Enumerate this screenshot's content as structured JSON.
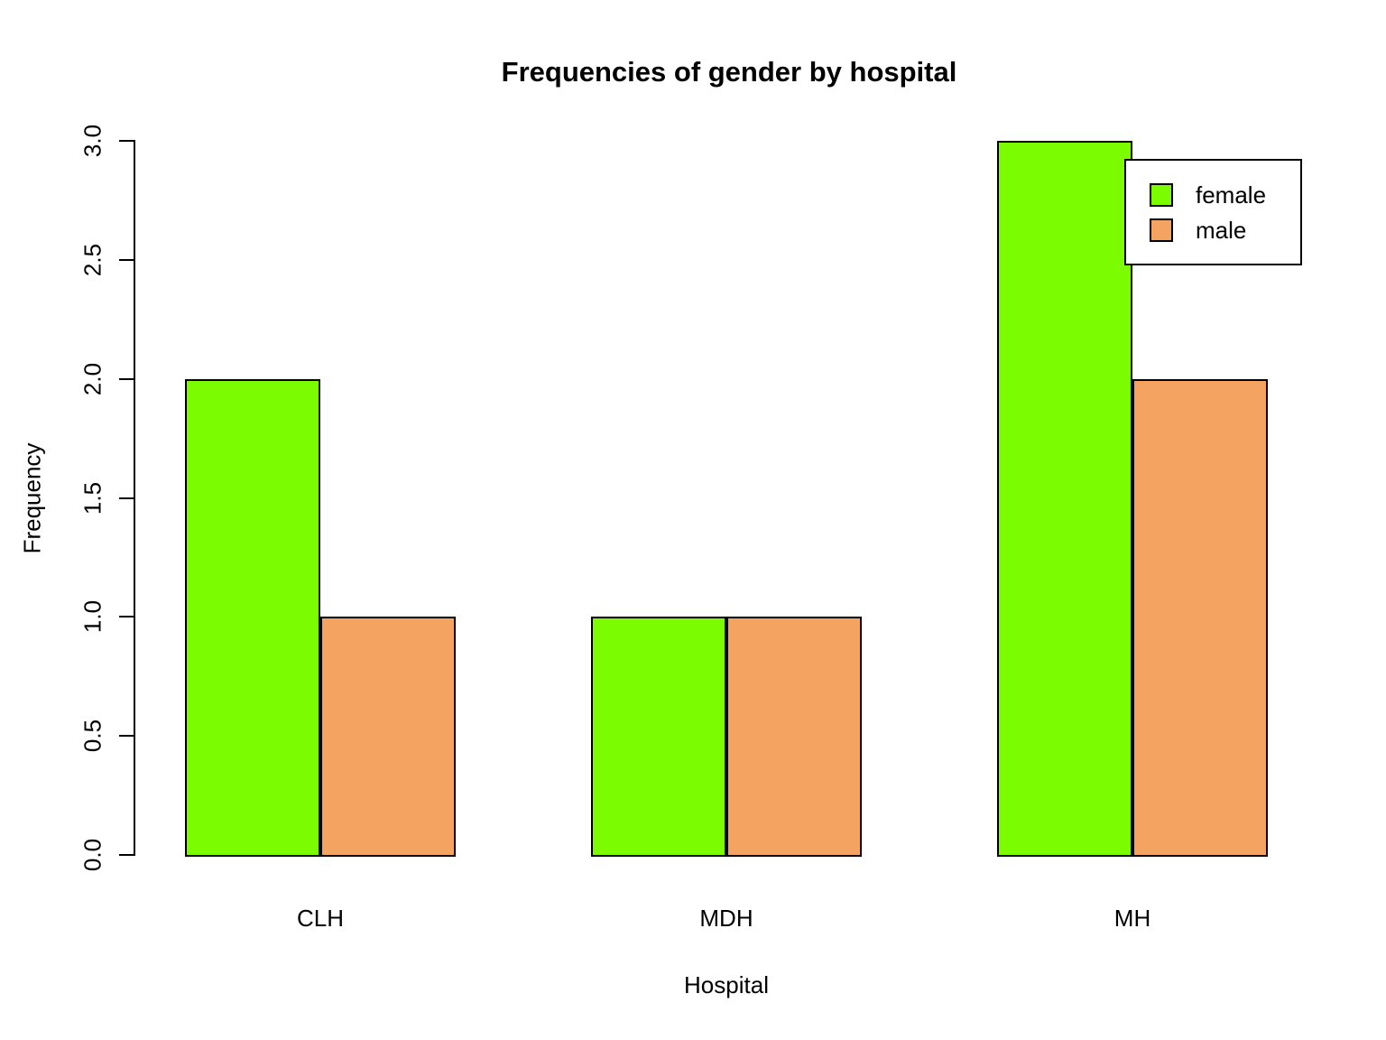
{
  "chart_data": {
    "type": "bar",
    "title": "Frequencies of gender by hospital",
    "xlabel": "Hospital",
    "ylabel": "Frequency",
    "categories": [
      "CLH",
      "MDH",
      "MH"
    ],
    "series": [
      {
        "name": "female",
        "color": "#7CFC00",
        "values": [
          2,
          1,
          3
        ]
      },
      {
        "name": "male",
        "color": "#F4A460",
        "values": [
          1,
          1,
          2
        ]
      }
    ],
    "ylim": [
      0,
      3
    ],
    "yticks": [
      0,
      0.5,
      1,
      1.5,
      2,
      2.5,
      3
    ],
    "ytick_labels": [
      "0.0",
      "0.5",
      "1.0",
      "1.5",
      "2.0",
      "2.5",
      "3.0"
    ],
    "grid": false,
    "legend": {
      "entries": [
        "female",
        "male"
      ],
      "position": "top-right"
    },
    "bar_border_color": "#000000",
    "axis_color": "#000000",
    "background": "#FFFFFF"
  }
}
